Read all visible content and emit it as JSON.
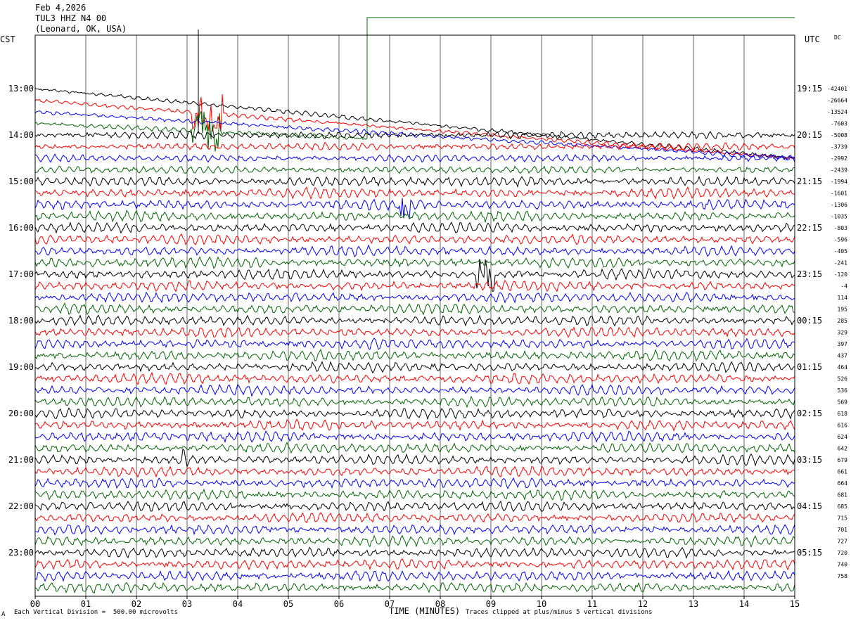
{
  "header": {
    "date": "Feb 4,2026",
    "station": "TUL3 HHZ N4 00",
    "location": "(Leonard, OK, USA)"
  },
  "left_timezone": "CST",
  "right_timezone": "UTC",
  "dc_label": "DC",
  "footer": {
    "scale_note": "Each Vertical Division =  500.00 microvolts",
    "clip_note": "Traces clipped at plus/minus 5 vertical divisions",
    "corner_mark": "A"
  },
  "colors": {
    "trace_cycle": [
      "#000000",
      "#ff0000",
      "#0000ff",
      "#006400"
    ],
    "background": "#ffffff",
    "grid": "#000000"
  },
  "chart_data": {
    "type": "line",
    "chart_kind": "helicorder",
    "xlabel": "TIME (MINUTES)",
    "x_ticks": [
      "00",
      "01",
      "02",
      "03",
      "04",
      "05",
      "06",
      "07",
      "08",
      "09",
      "10",
      "11",
      "12",
      "13",
      "14",
      "15"
    ],
    "xlim": [
      0,
      15
    ],
    "left_time_labels": [
      "13:00",
      "14:00",
      "15:00",
      "16:00",
      "17:00",
      "18:00",
      "19:00",
      "20:00",
      "21:00",
      "22:00",
      "23:00"
    ],
    "right_time_labels": [
      "19:15",
      "20:15",
      "21:15",
      "22:15",
      "23:15",
      "00:15",
      "01:15",
      "02:15",
      "03:15",
      "04:15",
      "05:15"
    ],
    "rows_per_hour": 4,
    "row_count": 44,
    "dc_offsets": [
      "-42401",
      "-26664",
      "-13524",
      "-7603",
      "-5008",
      "-3739",
      "-2992",
      "-2439",
      "-1994",
      "-1601",
      "-1306",
      "-1035",
      "-803",
      "-596",
      "-405",
      "-241",
      "-120",
      "-4",
      "114",
      "195",
      "285",
      "329",
      "397",
      "437",
      "464",
      "526",
      "536",
      "569",
      "618",
      "616",
      "624",
      "642",
      "679",
      "661",
      "664",
      "681",
      "685",
      "715",
      "701",
      "727",
      "720",
      "740",
      "758"
    ],
    "clip_divisions": 5,
    "events": [
      {
        "row": 1,
        "start_min": 3.1,
        "end_min": 3.7,
        "desc": "large burst"
      },
      {
        "row": 3,
        "start_min": 3.1,
        "end_min": 3.7,
        "desc": "burst"
      },
      {
        "row": 10,
        "start_min": 7.2,
        "end_min": 7.4,
        "desc": "spike"
      },
      {
        "row": 16,
        "start_min": 8.7,
        "end_min": 9.1,
        "desc": "burst"
      },
      {
        "row": 32,
        "start_min": 2.9,
        "end_min": 3.0,
        "desc": "spike"
      }
    ],
    "drift_rows": [
      {
        "row": 0,
        "from_row_offset": 0,
        "to_row_offset": 6
      },
      {
        "row": 1,
        "from_row_offset": 0,
        "to_row_offset": 5
      },
      {
        "row": 2,
        "from_row_offset": 0,
        "to_row_offset": 4
      },
      {
        "row": 3,
        "from_row_offset": 0,
        "to_row_offset": 3,
        "step_min": 6.55,
        "step_to_top": true
      }
    ]
  }
}
